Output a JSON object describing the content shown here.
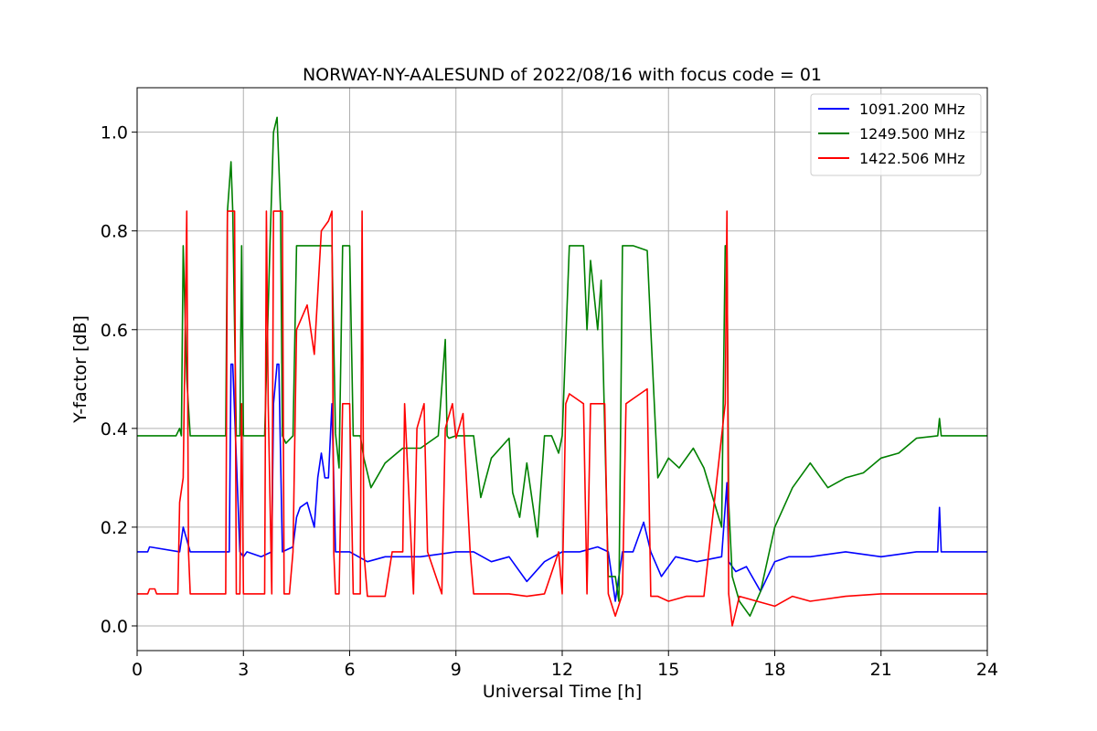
{
  "chart_data": {
    "type": "line",
    "title": "NORWAY-NY-AALESUND of 2022/08/16 with focus code = 01",
    "xlabel": "Universal Time [h]",
    "ylabel": "Y-factor [dB]",
    "xlim": [
      0,
      24
    ],
    "ylim": [
      -0.05,
      1.09
    ],
    "xticks": [
      0,
      3,
      6,
      9,
      12,
      15,
      18,
      21,
      24
    ],
    "xtick_labels": [
      "0",
      "3",
      "6",
      "9",
      "12",
      "15",
      "18",
      "21",
      "24"
    ],
    "yticks": [
      0.0,
      0.2,
      0.4,
      0.6,
      0.8,
      1.0
    ],
    "ytick_labels": [
      "0.0",
      "0.2",
      "0.4",
      "0.6",
      "0.8",
      "1.0"
    ],
    "grid": true,
    "legend_position": "top-right",
    "series": [
      {
        "name": "1091.200 MHz",
        "color": "#0000ff",
        "x": [
          0.0,
          0.3,
          0.35,
          1.2,
          1.3,
          1.5,
          2.6,
          2.65,
          2.7,
          2.9,
          3.0,
          3.1,
          3.5,
          3.8,
          3.85,
          3.95,
          4.0,
          4.1,
          4.4,
          4.5,
          4.6,
          4.8,
          5.0,
          5.1,
          5.2,
          5.3,
          5.4,
          5.5,
          5.6,
          5.7,
          6.0,
          6.5,
          7.0,
          8.0,
          9.0,
          9.5,
          10.0,
          10.5,
          11.0,
          11.5,
          12.0,
          12.5,
          13.0,
          13.3,
          13.5,
          13.7,
          14.0,
          14.3,
          14.5,
          14.8,
          15.2,
          15.8,
          16.5,
          16.65,
          16.7,
          16.9,
          17.2,
          17.6,
          18.0,
          18.4,
          19.0,
          20.0,
          21.0,
          22.0,
          22.6,
          22.65,
          22.7,
          23.0,
          24.0
        ],
        "y": [
          0.15,
          0.15,
          0.16,
          0.15,
          0.2,
          0.15,
          0.15,
          0.53,
          0.53,
          0.15,
          0.14,
          0.15,
          0.14,
          0.15,
          0.45,
          0.53,
          0.53,
          0.15,
          0.16,
          0.22,
          0.24,
          0.25,
          0.2,
          0.3,
          0.35,
          0.3,
          0.3,
          0.45,
          0.15,
          0.15,
          0.15,
          0.13,
          0.14,
          0.14,
          0.15,
          0.15,
          0.13,
          0.14,
          0.09,
          0.13,
          0.15,
          0.15,
          0.16,
          0.15,
          0.05,
          0.15,
          0.15,
          0.21,
          0.15,
          0.1,
          0.14,
          0.13,
          0.14,
          0.29,
          0.13,
          0.11,
          0.12,
          0.07,
          0.13,
          0.14,
          0.14,
          0.15,
          0.14,
          0.15,
          0.15,
          0.24,
          0.15,
          0.15,
          0.15
        ]
      },
      {
        "name": "1249.500 MHz",
        "color": "#008000",
        "x": [
          0.0,
          1.1,
          1.2,
          1.25,
          1.3,
          1.4,
          1.5,
          2.5,
          2.55,
          2.65,
          2.7,
          2.8,
          2.9,
          2.95,
          3.0,
          3.6,
          3.75,
          3.85,
          3.95,
          4.05,
          4.1,
          4.2,
          4.4,
          4.5,
          5.0,
          5.5,
          5.6,
          5.7,
          5.8,
          6.0,
          6.1,
          6.3,
          6.4,
          6.6,
          7.0,
          7.5,
          8.0,
          8.5,
          8.7,
          8.75,
          8.8,
          9.0,
          9.5,
          9.7,
          10.0,
          10.5,
          10.6,
          10.8,
          11.0,
          11.3,
          11.5,
          11.7,
          11.9,
          12.0,
          12.2,
          12.3,
          12.6,
          12.7,
          12.8,
          13.0,
          13.1,
          13.2,
          13.3,
          13.5,
          13.6,
          13.7,
          14.0,
          14.4,
          14.5,
          14.7,
          15.0,
          15.3,
          15.7,
          16.0,
          16.5,
          16.6,
          16.65,
          16.7,
          16.8,
          17.0,
          17.3,
          17.6,
          18.0,
          18.5,
          19.0,
          19.5,
          20.0,
          20.5,
          21.0,
          21.5,
          22.0,
          22.6,
          22.65,
          22.7,
          23.0,
          24.0
        ],
        "y": [
          0.385,
          0.385,
          0.4,
          0.385,
          0.77,
          0.5,
          0.385,
          0.385,
          0.84,
          0.94,
          0.84,
          0.385,
          0.385,
          0.77,
          0.385,
          0.385,
          0.77,
          1.0,
          1.03,
          0.84,
          0.385,
          0.37,
          0.385,
          0.77,
          0.77,
          0.77,
          0.39,
          0.32,
          0.77,
          0.77,
          0.385,
          0.385,
          0.34,
          0.28,
          0.33,
          0.36,
          0.36,
          0.385,
          0.58,
          0.385,
          0.38,
          0.385,
          0.385,
          0.26,
          0.34,
          0.38,
          0.27,
          0.22,
          0.33,
          0.18,
          0.385,
          0.385,
          0.35,
          0.385,
          0.77,
          0.77,
          0.77,
          0.6,
          0.74,
          0.6,
          0.7,
          0.4,
          0.1,
          0.1,
          0.05,
          0.77,
          0.77,
          0.76,
          0.6,
          0.3,
          0.34,
          0.32,
          0.36,
          0.32,
          0.2,
          0.77,
          0.77,
          0.25,
          0.1,
          0.05,
          0.02,
          0.07,
          0.2,
          0.28,
          0.33,
          0.28,
          0.3,
          0.31,
          0.34,
          0.35,
          0.38,
          0.385,
          0.42,
          0.385,
          0.385,
          0.385
        ]
      },
      {
        "name": "1422.506 MHz",
        "color": "#ff0000",
        "x": [
          0.0,
          0.3,
          0.35,
          0.5,
          0.55,
          1.15,
          1.2,
          1.3,
          1.4,
          1.45,
          1.5,
          2.5,
          2.55,
          2.75,
          2.8,
          2.9,
          2.95,
          3.0,
          3.6,
          3.65,
          3.7,
          3.8,
          3.85,
          4.1,
          4.15,
          4.3,
          4.4,
          4.5,
          4.8,
          5.0,
          5.2,
          5.4,
          5.5,
          5.55,
          5.6,
          5.7,
          5.8,
          6.0,
          6.1,
          6.3,
          6.35,
          6.4,
          6.5,
          7.0,
          7.2,
          7.5,
          7.55,
          7.8,
          7.9,
          8.1,
          8.2,
          8.6,
          8.7,
          8.9,
          9.0,
          9.2,
          9.4,
          9.5,
          10.0,
          10.5,
          11.0,
          11.5,
          11.9,
          12.0,
          12.1,
          12.2,
          12.6,
          12.7,
          12.8,
          13.2,
          13.3,
          13.5,
          13.7,
          13.8,
          14.0,
          14.4,
          14.5,
          14.7,
          15.0,
          15.5,
          16.0,
          16.6,
          16.65,
          16.7,
          16.8,
          17.0,
          17.5,
          18.0,
          18.5,
          19.0,
          20.0,
          21.0,
          22.0,
          23.0,
          24.0
        ],
        "y": [
          0.065,
          0.065,
          0.075,
          0.075,
          0.065,
          0.065,
          0.25,
          0.3,
          0.84,
          0.15,
          0.065,
          0.065,
          0.84,
          0.84,
          0.065,
          0.065,
          0.45,
          0.065,
          0.065,
          0.84,
          0.45,
          0.065,
          0.84,
          0.84,
          0.065,
          0.065,
          0.15,
          0.6,
          0.65,
          0.55,
          0.8,
          0.82,
          0.84,
          0.15,
          0.065,
          0.065,
          0.45,
          0.45,
          0.065,
          0.065,
          0.84,
          0.15,
          0.06,
          0.06,
          0.15,
          0.15,
          0.45,
          0.065,
          0.4,
          0.45,
          0.15,
          0.065,
          0.4,
          0.45,
          0.38,
          0.43,
          0.15,
          0.065,
          0.065,
          0.065,
          0.06,
          0.065,
          0.15,
          0.065,
          0.45,
          0.47,
          0.45,
          0.065,
          0.45,
          0.45,
          0.065,
          0.02,
          0.065,
          0.45,
          0.46,
          0.48,
          0.06,
          0.06,
          0.05,
          0.06,
          0.06,
          0.45,
          0.84,
          0.065,
          0.0,
          0.06,
          0.05,
          0.04,
          0.06,
          0.05,
          0.06,
          0.065,
          0.065,
          0.065,
          0.065
        ]
      }
    ]
  }
}
